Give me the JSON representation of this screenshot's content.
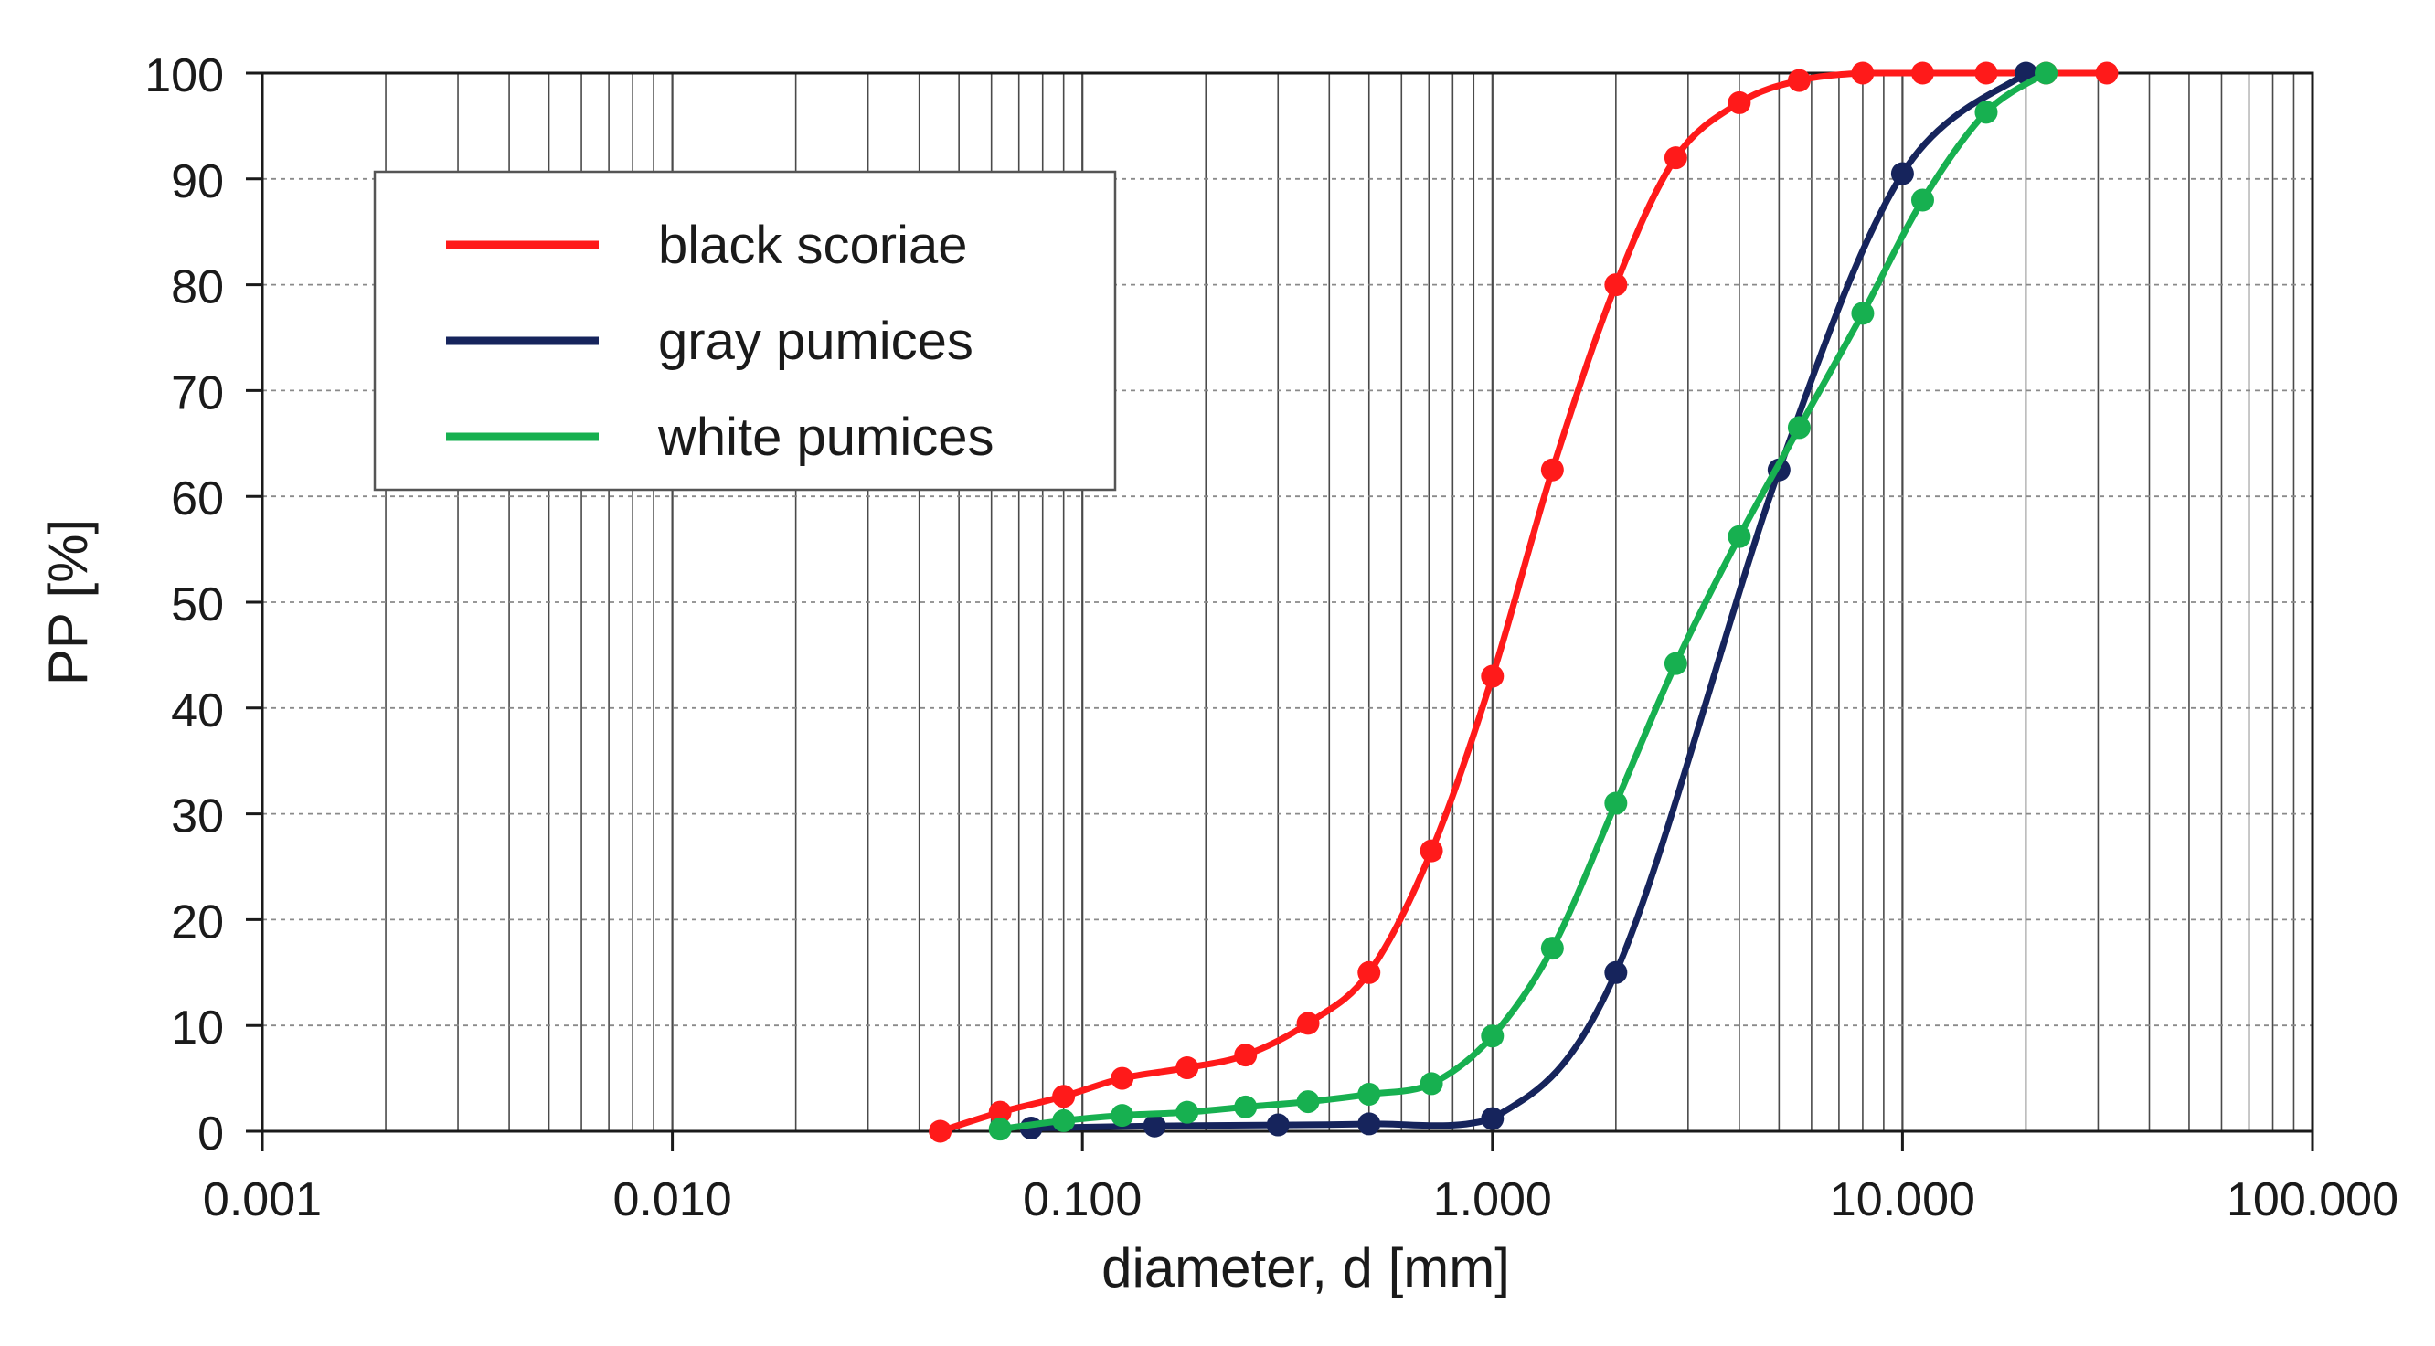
{
  "chart_data": {
    "type": "line",
    "title": "",
    "xlabel": "diameter, d [mm]",
    "ylabel": "PP [%]",
    "x_scale": "log",
    "xlim": [
      0.001,
      100
    ],
    "ylim": [
      0,
      100
    ],
    "x_ticks": [
      0.001,
      0.01,
      0.1,
      1,
      10,
      100
    ],
    "x_tick_labels": [
      "0.001",
      "0.010",
      "0.100",
      "1.000",
      "10.000",
      "100.000"
    ],
    "y_ticks": [
      0,
      10,
      20,
      30,
      40,
      50,
      60,
      70,
      80,
      90,
      100
    ],
    "y_tick_labels": [
      "0",
      "10",
      "20",
      "30",
      "40",
      "50",
      "60",
      "70",
      "80",
      "90",
      "100"
    ],
    "grid": {
      "x_major_minor": true,
      "y_dashed": true
    },
    "legend_position": "upper-left",
    "series": [
      {
        "name": "black scoriae",
        "color": "#ff1a1a",
        "x": [
          0.045,
          0.063,
          0.09,
          0.125,
          0.18,
          0.25,
          0.355,
          0.5,
          0.71,
          1.0,
          1.4,
          2.0,
          2.8,
          4.0,
          5.6,
          8.0,
          11.2,
          16.0,
          22.4,
          31.5
        ],
        "y": [
          0,
          1.8,
          3.3,
          5.0,
          6.0,
          7.2,
          10.2,
          15.0,
          26.5,
          43.0,
          62.5,
          80.0,
          92.0,
          97.2,
          99.3,
          100,
          100,
          100,
          100,
          100
        ]
      },
      {
        "name": "gray pumices",
        "color": "#16245c",
        "x": [
          0.075,
          0.15,
          0.3,
          0.5,
          1.0,
          2.0,
          5.0,
          10.0,
          20.0
        ],
        "y": [
          0.3,
          0.5,
          0.6,
          0.7,
          1.2,
          15.0,
          62.5,
          90.5,
          100
        ]
      },
      {
        "name": "white pumices",
        "color": "#17b050",
        "x": [
          0.063,
          0.09,
          0.125,
          0.18,
          0.25,
          0.355,
          0.5,
          0.71,
          1.0,
          1.4,
          2.0,
          2.8,
          4.0,
          5.6,
          8.0,
          11.2,
          16.0,
          22.4
        ],
        "y": [
          0.2,
          1.0,
          1.5,
          1.8,
          2.3,
          2.8,
          3.5,
          4.5,
          9.0,
          17.3,
          31.0,
          44.2,
          56.2,
          66.5,
          77.3,
          88.0,
          96.3,
          100
        ]
      }
    ]
  }
}
